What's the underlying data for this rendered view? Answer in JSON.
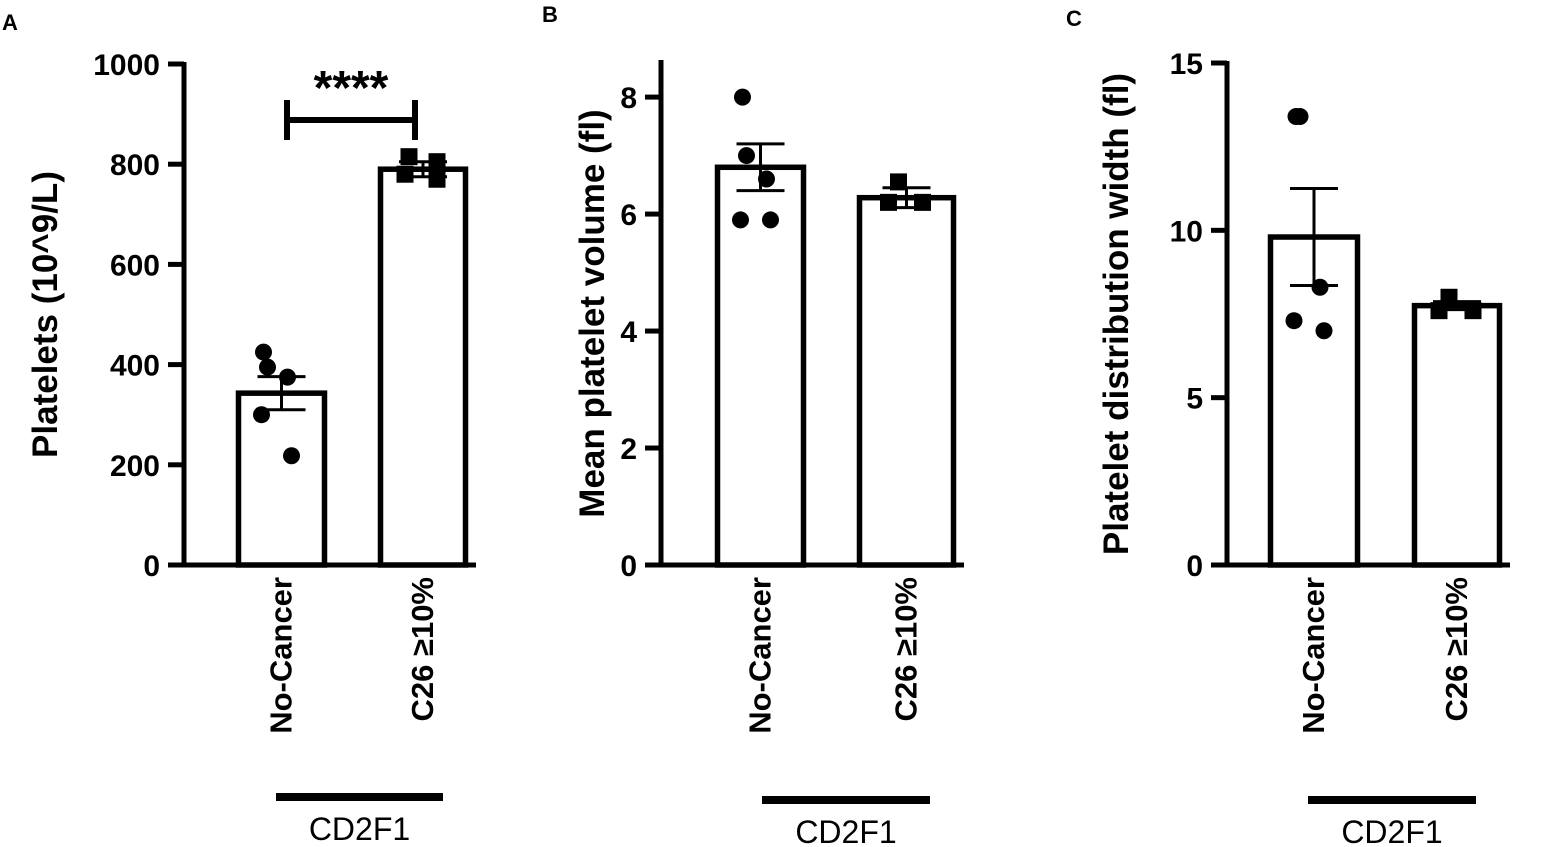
{
  "chart_data": [
    {
      "panel": "A",
      "type": "bar",
      "ylabel": "Platelets (10^9/L)",
      "ylim": [
        0,
        1000
      ],
      "yticks": [
        0,
        200,
        400,
        600,
        800,
        1000
      ],
      "categories": [
        "No-Cancer",
        "C26 ≥10%"
      ],
      "group_label": "CD2F1",
      "values": [
        343,
        790
      ],
      "sem": [
        33,
        15
      ],
      "points": [
        [
          425,
          395,
          375,
          300,
          218
        ],
        [
          815,
          805,
          780,
          770
        ]
      ],
      "significance": "****"
    },
    {
      "panel": "B",
      "type": "bar",
      "ylabel": "Mean platelet volume (fl)",
      "ylim": [
        0,
        8.6
      ],
      "yticks": [
        0,
        2,
        4,
        6,
        8
      ],
      "categories": [
        "No-Cancer",
        "C26 ≥10%"
      ],
      "group_label": "CD2F1",
      "values": [
        6.8,
        6.28
      ],
      "sem": [
        0.4,
        0.17
      ],
      "points": [
        [
          8.0,
          7.0,
          6.6,
          5.9,
          5.9
        ],
        [
          6.55,
          6.2,
          6.2
        ]
      ],
      "significance": ""
    },
    {
      "panel": "C",
      "type": "bar",
      "ylabel": "Platelet distribution width (fl)",
      "ylim": [
        0,
        15
      ],
      "yticks": [
        0,
        5,
        10,
        15
      ],
      "categories": [
        "No-Cancer",
        "C26 ≥10%"
      ],
      "group_label": "CD2F1",
      "values": [
        9.8,
        7.75
      ],
      "sem": [
        1.45,
        0.12
      ],
      "points": [
        [
          13.4,
          13.4,
          8.3,
          7.3,
          7.0
        ],
        [
          8.0,
          7.6,
          7.6
        ]
      ],
      "significance": ""
    }
  ]
}
